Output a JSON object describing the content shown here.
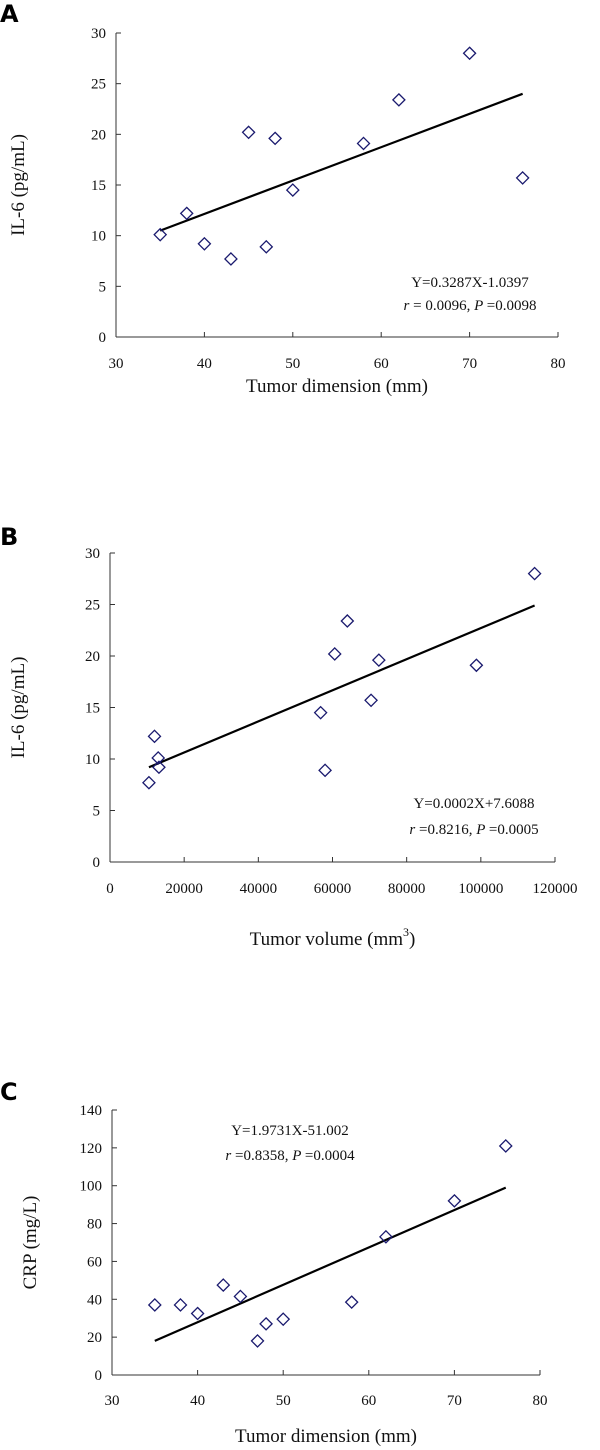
{
  "colors": {
    "marker": "#1a1a6e",
    "line": "#000000",
    "axis": "#333333"
  },
  "chart_data": [
    {
      "panel": "A",
      "type": "scatter",
      "xlabel": "Tumor dimension (mm)",
      "ylabel": "IL-6 (pg/mL)",
      "xlim": [
        30,
        80
      ],
      "ylim": [
        0,
        30
      ],
      "xticks": [
        30,
        40,
        50,
        60,
        70,
        80
      ],
      "yticks": [
        0,
        5,
        10,
        15,
        20,
        25,
        30
      ],
      "marker": "diamond-open",
      "points": [
        [
          35,
          10.1
        ],
        [
          38,
          12.2
        ],
        [
          40,
          9.2
        ],
        [
          43,
          7.7
        ],
        [
          45,
          20.2
        ],
        [
          47,
          8.9
        ],
        [
          48,
          19.6
        ],
        [
          50,
          14.5
        ],
        [
          58,
          19.1
        ],
        [
          62,
          23.4
        ],
        [
          70,
          28.0
        ],
        [
          76,
          15.7
        ]
      ],
      "trendline": [
        [
          35,
          10.5
        ],
        [
          76,
          24.0
        ]
      ],
      "annotation": [
        "Y=0.3287X-1.0397",
        "= 0.0096, ",
        "=0.0098"
      ],
      "annotation_italic": [
        "r",
        "P"
      ]
    },
    {
      "panel": "B",
      "type": "scatter",
      "xlabel": "Tumor volume (mm",
      "xlabel_sup": "3",
      "xlabel_end": ")",
      "ylabel": "IL-6 (pg/mL)",
      "xlim": [
        0,
        120000
      ],
      "ylim": [
        0,
        30
      ],
      "xticks": [
        0,
        20000,
        40000,
        60000,
        80000,
        100000,
        120000
      ],
      "yticks": [
        0,
        5,
        10,
        15,
        20,
        25,
        30
      ],
      "marker": "diamond-open",
      "points": [
        [
          10500,
          7.7
        ],
        [
          12000,
          12.2
        ],
        [
          13000,
          10.1
        ],
        [
          13200,
          9.2
        ],
        [
          56800,
          14.5
        ],
        [
          58000,
          8.9
        ],
        [
          60600,
          20.2
        ],
        [
          64000,
          23.4
        ],
        [
          70400,
          15.7
        ],
        [
          72500,
          19.6
        ],
        [
          98800,
          19.1
        ],
        [
          114500,
          28.0
        ]
      ],
      "trendline": [
        [
          10500,
          9.2
        ],
        [
          114500,
          24.9
        ]
      ],
      "annotation": [
        "Y=0.0002X+7.6088",
        "=0.8216, ",
        "=0.0005"
      ],
      "annotation_italic": [
        "r",
        "P"
      ]
    },
    {
      "panel": "C",
      "type": "scatter",
      "xlabel": "Tumor dimension (mm)",
      "ylabel": "CRP (mg/L)",
      "xlim": [
        30,
        80
      ],
      "ylim": [
        0,
        140
      ],
      "xticks": [
        30,
        40,
        50,
        60,
        70,
        80
      ],
      "yticks": [
        0,
        20,
        40,
        60,
        80,
        100,
        120,
        140
      ],
      "marker": "diamond-open",
      "points": [
        [
          35,
          37
        ],
        [
          38,
          37
        ],
        [
          40,
          32.5
        ],
        [
          43,
          47.5
        ],
        [
          45,
          41.5
        ],
        [
          47,
          18
        ],
        [
          48,
          27
        ],
        [
          50,
          29.5
        ],
        [
          58,
          38.5
        ],
        [
          62,
          73
        ],
        [
          70,
          92
        ],
        [
          76,
          121
        ]
      ],
      "trendline": [
        [
          35,
          18
        ],
        [
          76,
          99
        ]
      ],
      "annotation": [
        "Y=1.9731X-51.002",
        "=0.8358, ",
        "=0.0004"
      ],
      "annotation_italic": [
        "r",
        "P"
      ]
    }
  ]
}
